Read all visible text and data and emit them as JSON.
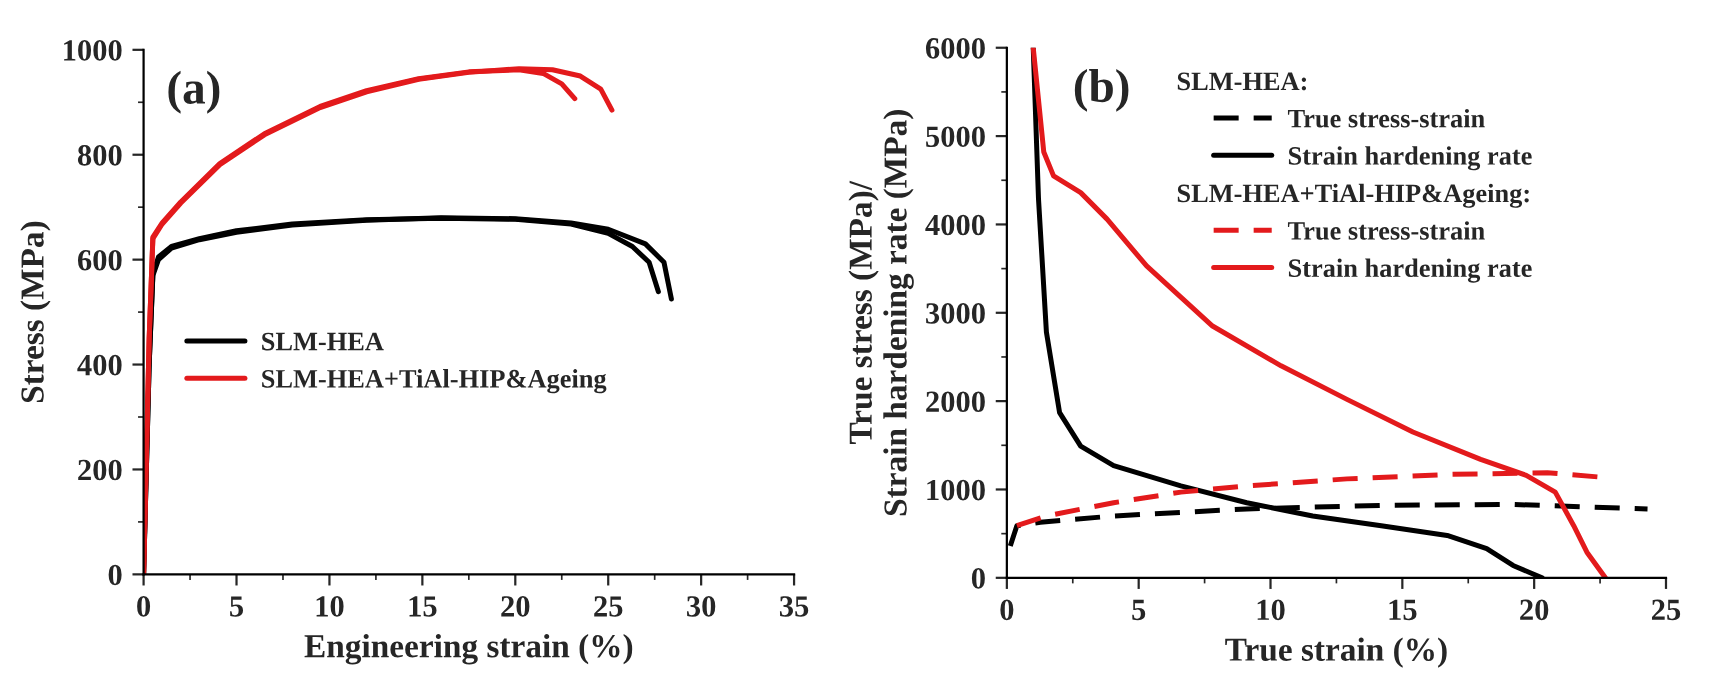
{
  "chart_data": [
    {
      "type": "line",
      "xlabel": "Engineering strain (%)",
      "ylabel": "Stress (MPa)",
      "xlim": [
        0,
        35
      ],
      "ylim": [
        0,
        1000
      ],
      "xticks": [
        0,
        5,
        10,
        15,
        20,
        25,
        30,
        35
      ],
      "yticks": [
        0,
        200,
        400,
        600,
        800,
        1000
      ],
      "grid": false,
      "legend": "left",
      "annotations": [
        "(a)"
      ],
      "series": [
        {
          "name": "SLM-HEA",
          "color": "#000000",
          "line_style": "solid",
          "x": [
            0,
            0.3,
            0.5,
            0.8,
            1.5,
            3,
            5,
            8,
            12,
            16,
            20,
            23,
            25,
            26.3,
            27.2,
            27.7
          ],
          "values": [
            0,
            400,
            573,
            605,
            625,
            640,
            655,
            668,
            676,
            679,
            677,
            668,
            650,
            625,
            595,
            539
          ]
        },
        {
          "color": "#000000",
          "line_style": "solid",
          "x": [
            0,
            0.3,
            0.5,
            0.8,
            1.5,
            3,
            5,
            8,
            12,
            16,
            20,
            23,
            25,
            27,
            28,
            28.4
          ],
          "values": [
            0,
            400,
            570,
            600,
            622,
            638,
            652,
            666,
            675,
            680,
            678,
            670,
            658,
            630,
            595,
            525
          ]
        },
        {
          "name": "SLM-HEA+TiAl-HIP&Ageing",
          "color": "#e31a1c",
          "line_style": "solid",
          "x": [
            0,
            0.3,
            0.5,
            1,
            2,
            4.1,
            6.5,
            9.5,
            12,
            14.8,
            17.5,
            20.2,
            21.5,
            22.5,
            23.2
          ],
          "values": [
            0,
            450,
            643,
            670,
            710,
            783,
            840,
            892,
            922,
            945,
            958,
            962,
            955,
            935,
            907
          ]
        },
        {
          "color": "#e31a1c",
          "line_style": "solid",
          "x": [
            0,
            0.3,
            0.5,
            1,
            2,
            4.1,
            6.5,
            9.5,
            12,
            14.8,
            17.5,
            20.2,
            22,
            23.5,
            24.6,
            25.2
          ],
          "values": [
            0,
            450,
            640,
            668,
            708,
            781,
            838,
            890,
            920,
            944,
            957,
            964,
            962,
            950,
            925,
            885
          ]
        }
      ]
    },
    {
      "type": "line",
      "xlabel": "True strain (%)",
      "ylabel": "True stress (MPa)/\nStrain hardening rate (MPa)",
      "xlim": [
        0,
        25
      ],
      "ylim": [
        0,
        6000
      ],
      "xticks": [
        0,
        5,
        10,
        15,
        20,
        25
      ],
      "yticks": [
        0,
        1000,
        2000,
        3000,
        4000,
        5000,
        6000
      ],
      "grid": false,
      "legend": "top right",
      "annotations": [
        "(b)",
        "SLM-HEA:",
        "SLM-HEA+TiAl-HIP&Ageing:"
      ],
      "series": [
        {
          "name": "True stress-strain",
          "color": "#000000",
          "line_style": "dashed",
          "x": [
            0.13,
            0.38,
            1.27,
            4.05,
            9.1,
            14.2,
            19.2,
            24.3
          ],
          "values": [
            360,
            590,
            630,
            700,
            780,
            820,
            830,
            780
          ]
        },
        {
          "name": "Strain hardening rate",
          "color": "#000000",
          "line_style": "solid",
          "x": [
            1.0,
            1.2,
            1.5,
            2.0,
            2.8,
            4.05,
            6.6,
            9.1,
            11.6,
            14.2,
            16.7,
            18.2,
            19.2,
            20.3
          ],
          "values": [
            6000,
            4290,
            2780,
            1870,
            1490,
            1270,
            1040,
            850,
            700,
            590,
            480,
            330,
            140,
            0
          ]
        },
        {
          "name": "True stress-strain",
          "color": "#e31a1c",
          "line_style": "dashed",
          "x": [
            0.38,
            1.5,
            4.05,
            6.6,
            9.1,
            12.9,
            16.7,
            20.5,
            22.5
          ],
          "values": [
            590,
            700,
            850,
            970,
            1040,
            1120,
            1170,
            1190,
            1140
          ]
        },
        {
          "name": "Strain hardening rate",
          "color": "#e31a1c",
          "line_style": "solid",
          "x": [
            1.0,
            1.4,
            1.77,
            2.8,
            3.8,
            5.3,
            7.8,
            10.4,
            12.9,
            15.4,
            17.97,
            19.7,
            20.8,
            21.5,
            22.0,
            22.7
          ],
          "values": [
            6000,
            4820,
            4550,
            4360,
            4060,
            3530,
            2850,
            2400,
            2020,
            1650,
            1340,
            1160,
            970,
            590,
            290,
            0
          ]
        }
      ]
    }
  ]
}
